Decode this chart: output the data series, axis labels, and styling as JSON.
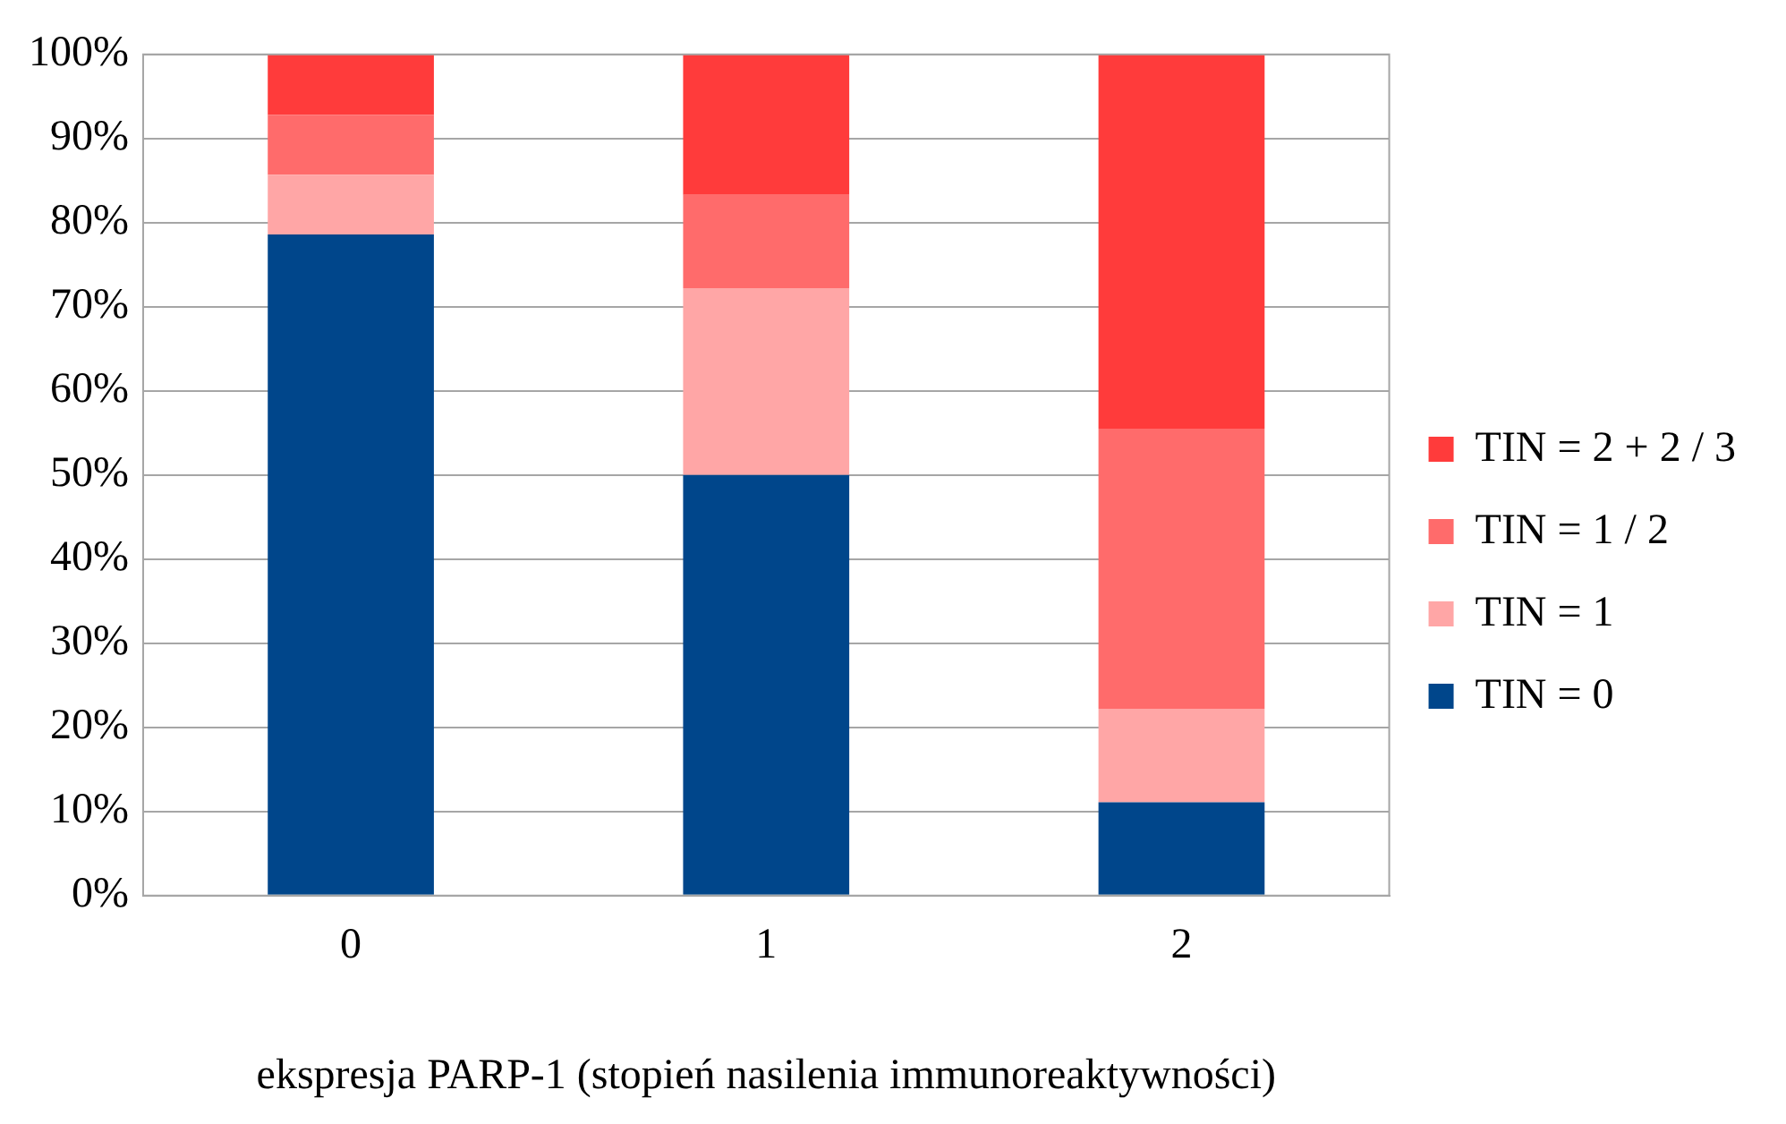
{
  "chart_data": {
    "type": "bar",
    "stacked": true,
    "categories": [
      "0",
      "1",
      "2"
    ],
    "xlabel": "ekspresja PARP-1 (stopień nasilenia immunoreaktywności)",
    "series": [
      {
        "name": "TIN = 0",
        "color": "#00468b",
        "values": [
          78.6,
          50,
          11.1
        ]
      },
      {
        "name": "TIN = 1",
        "color": "#ffa6a6",
        "values": [
          7.1,
          22.2,
          11.1
        ]
      },
      {
        "name": "TIN = 1 / 2",
        "color": "#ff6b6b",
        "values": [
          7.1,
          11.1,
          33.3
        ]
      },
      {
        "name": "TIN = 2 + 2 / 3",
        "color": "#ff3b3b",
        "values": [
          7.2,
          16.7,
          44.5
        ]
      }
    ],
    "ylim": [
      0,
      100
    ],
    "yticks": [
      {
        "value": 0,
        "label": "0%"
      },
      {
        "value": 10,
        "label": "10%"
      },
      {
        "value": 20,
        "label": "20%"
      },
      {
        "value": 30,
        "label": "30%"
      },
      {
        "value": 40,
        "label": "40%"
      },
      {
        "value": 50,
        "label": "50%"
      },
      {
        "value": 60,
        "label": "60%"
      },
      {
        "value": 70,
        "label": "70%"
      },
      {
        "value": 80,
        "label": "80%"
      },
      {
        "value": 90,
        "label": "90%"
      },
      {
        "value": 100,
        "label": "100%"
      }
    ],
    "grid": "y",
    "legend": "right"
  }
}
